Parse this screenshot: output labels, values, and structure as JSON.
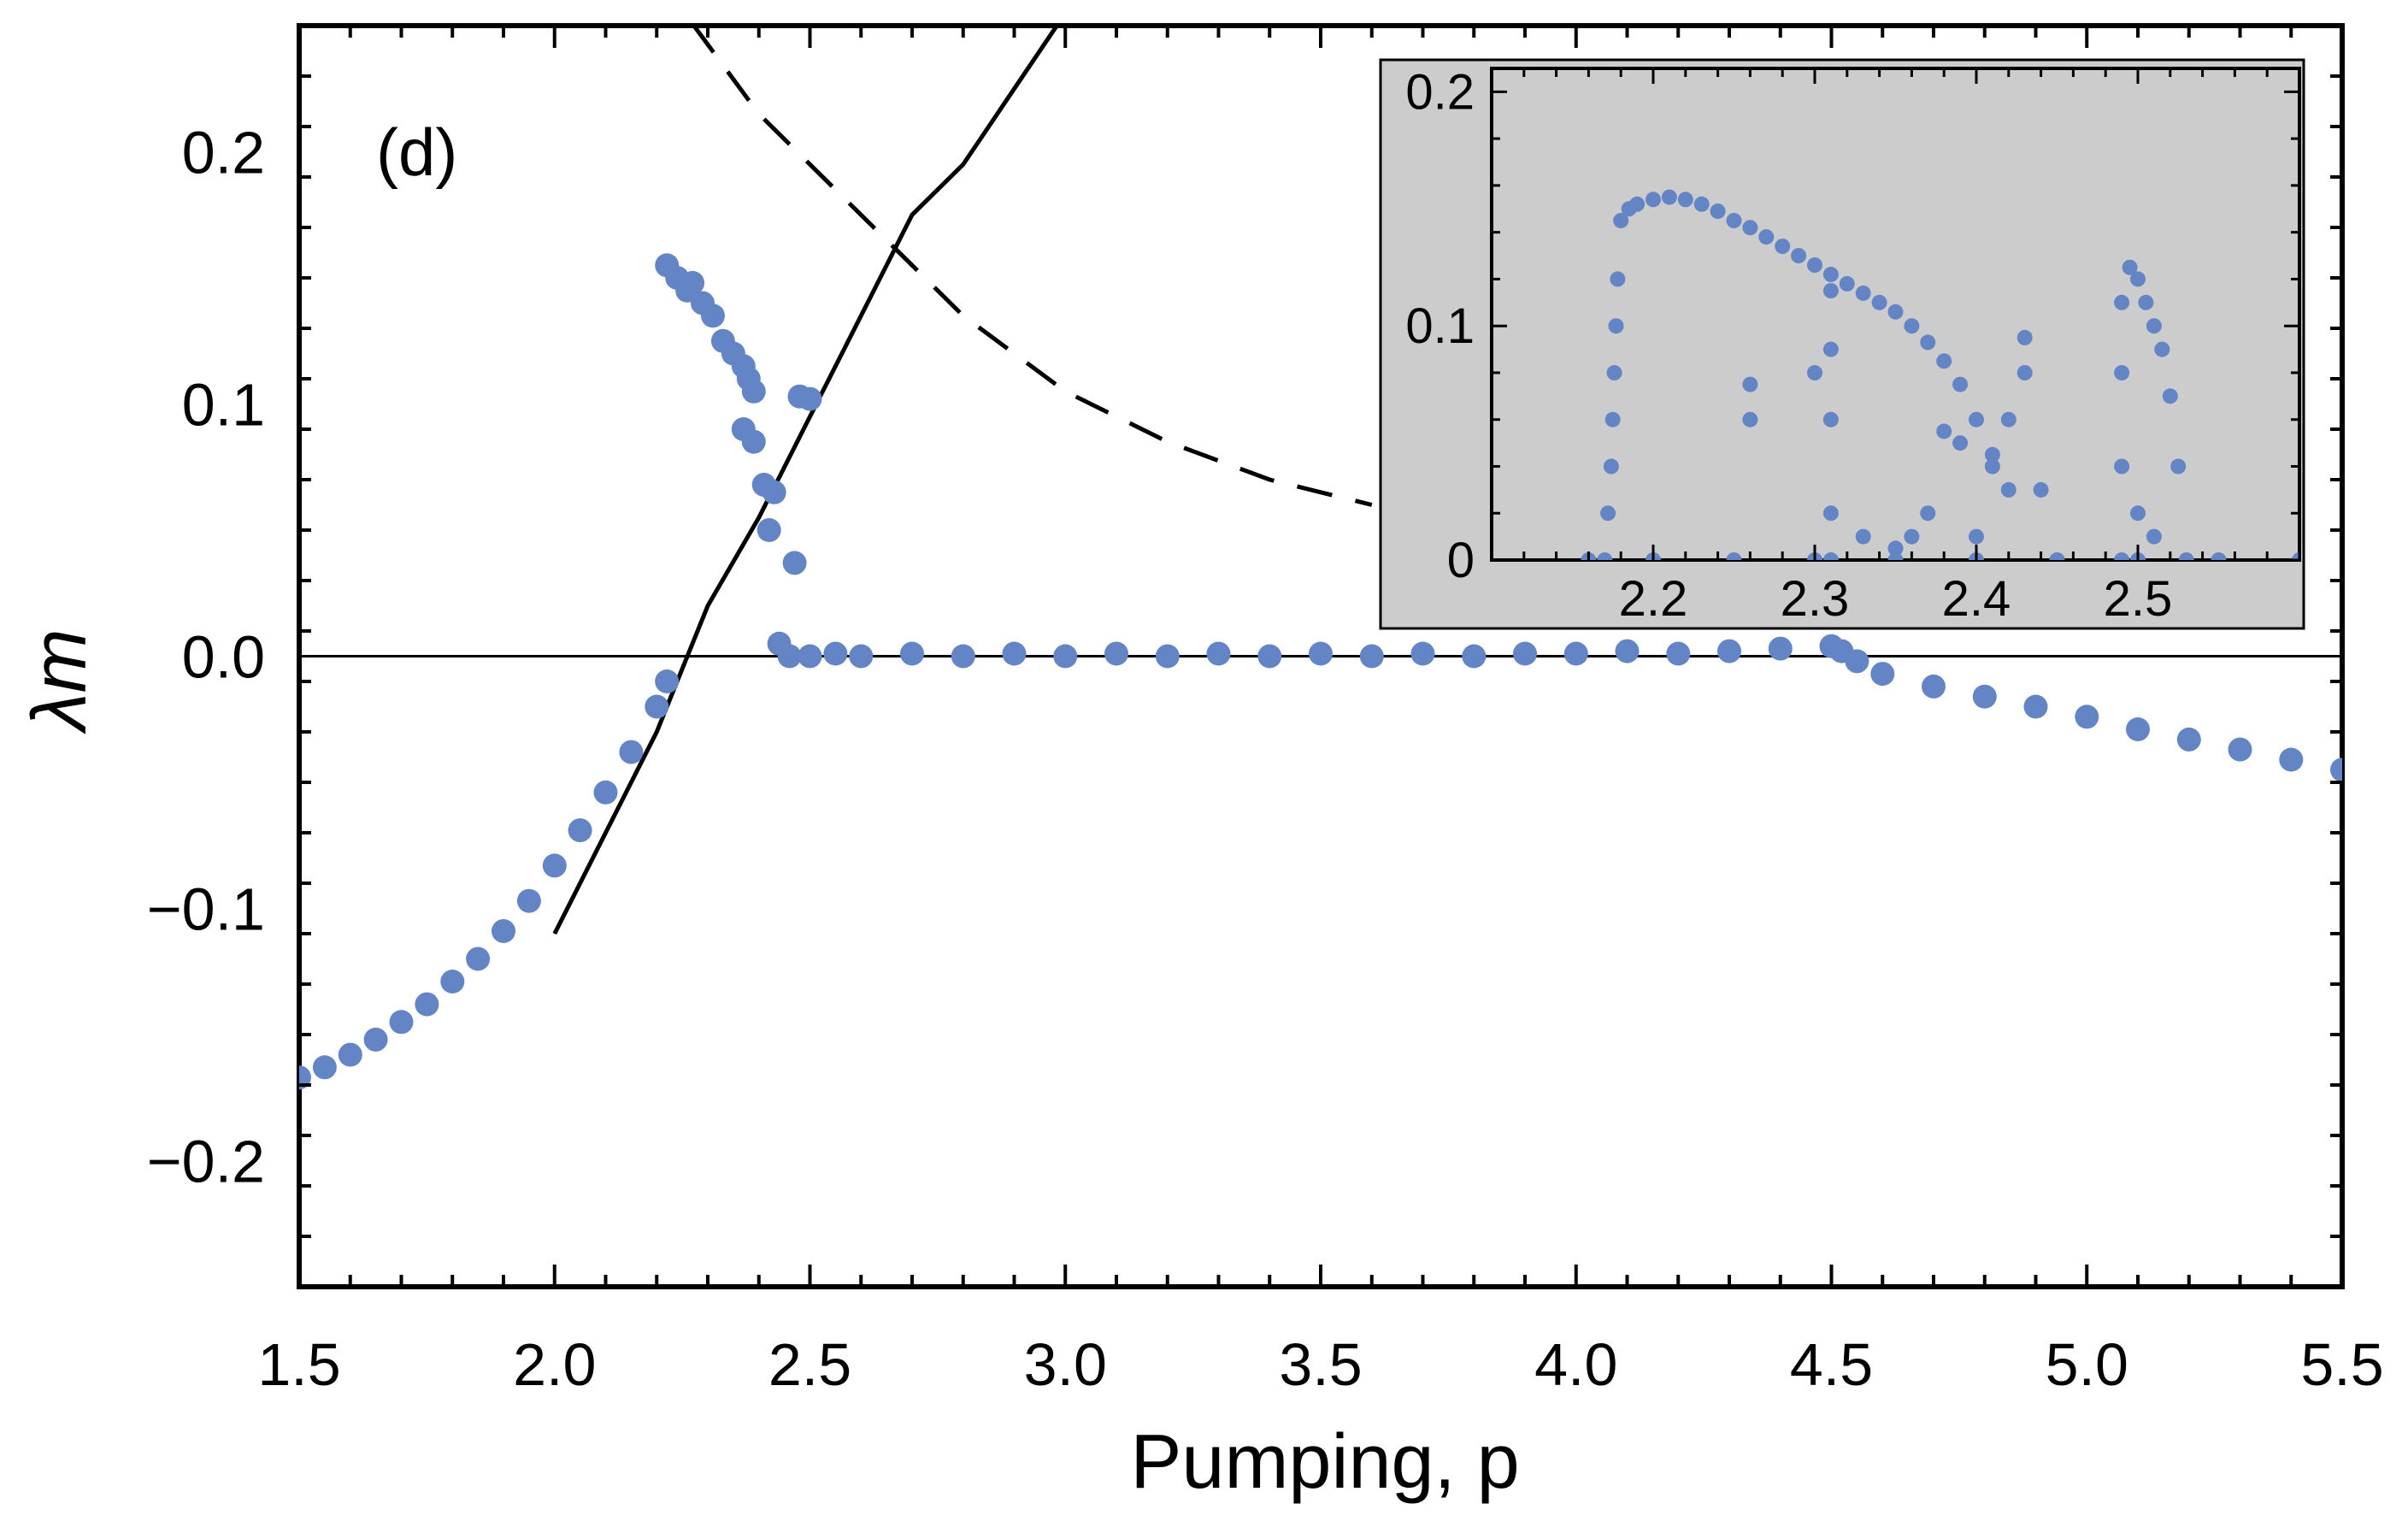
{
  "chart_data": [
    {
      "type": "scatter",
      "panel_label": "(d)",
      "xlabel": "Pumping, p",
      "ylabel": "λm",
      "xlim": [
        1.5,
        5.5
      ],
      "ylim": [
        -0.25,
        0.25
      ],
      "x_ticks": [
        "1.5",
        "2.0",
        "2.5",
        "3.0",
        "3.5",
        "4.0",
        "4.5",
        "5.0",
        "5.5"
      ],
      "x_tick_values": [
        1.5,
        2.0,
        2.5,
        3.0,
        3.5,
        4.0,
        4.5,
        5.0,
        5.5
      ],
      "y_ticks": [
        "−0.2",
        "−0.1",
        "0.0",
        "0.1",
        "0.2"
      ],
      "y_tick_values": [
        -0.2,
        -0.1,
        0.0,
        0.1,
        0.2
      ],
      "grid": false,
      "marker_color": "#6485c5",
      "reference_lines": [
        {
          "style": "solid",
          "points": [
            [
              2.0,
              -0.11
            ],
            [
              2.1,
              -0.07
            ],
            [
              2.2,
              -0.03
            ],
            [
              2.3,
              0.02
            ],
            [
              2.4,
              0.055
            ],
            [
              2.5,
              0.095
            ],
            [
              2.6,
              0.135
            ],
            [
              2.7,
              0.175
            ],
            [
              2.8,
              0.195
            ],
            [
              2.9,
              0.225
            ],
            [
              3.0,
              0.255
            ]
          ]
        },
        {
          "style": "dashed",
          "points": [
            [
              2.2,
              0.27
            ],
            [
              2.4,
              0.215
            ],
            [
              2.6,
              0.175
            ],
            [
              2.8,
              0.135
            ],
            [
              3.0,
              0.105
            ],
            [
              3.2,
              0.085
            ],
            [
              3.4,
              0.07
            ],
            [
              3.6,
              0.06
            ]
          ]
        },
        {
          "style": "solid-thin",
          "points": [
            [
              1.5,
              0.0
            ],
            [
              5.5,
              0.0
            ]
          ]
        }
      ],
      "series": [
        {
          "points": [
            [
              1.5,
              -0.167
            ],
            [
              1.55,
              -0.163
            ],
            [
              1.6,
              -0.158
            ],
            [
              1.65,
              -0.152
            ],
            [
              1.7,
              -0.145
            ],
            [
              1.75,
              -0.138
            ],
            [
              1.8,
              -0.129
            ],
            [
              1.85,
              -0.12
            ],
            [
              1.9,
              -0.109
            ],
            [
              1.95,
              -0.097
            ],
            [
              2.0,
              -0.083
            ],
            [
              2.05,
              -0.069
            ],
            [
              2.1,
              -0.054
            ],
            [
              2.15,
              -0.038
            ],
            [
              2.2,
              -0.02
            ],
            [
              2.22,
              -0.01
            ]
          ]
        },
        {
          "points": [
            [
              2.22,
              0.155
            ],
            [
              2.24,
              0.15
            ],
            [
              2.26,
              0.145
            ],
            [
              2.27,
              0.148
            ],
            [
              2.29,
              0.14
            ],
            [
              2.31,
              0.135
            ],
            [
              2.33,
              0.125
            ],
            [
              2.35,
              0.12
            ],
            [
              2.37,
              0.115
            ],
            [
              2.38,
              0.11
            ],
            [
              2.39,
              0.105
            ],
            [
              2.37,
              0.09
            ],
            [
              2.39,
              0.085
            ],
            [
              2.41,
              0.068
            ],
            [
              2.43,
              0.065
            ],
            [
              2.42,
              0.05
            ],
            [
              2.47,
              0.037
            ],
            [
              2.48,
              0.103
            ],
            [
              2.5,
              0.102
            ]
          ]
        },
        {
          "points": [
            [
              2.44,
              0.005
            ],
            [
              2.46,
              0.0
            ],
            [
              2.5,
              0.0
            ],
            [
              2.55,
              0.001
            ],
            [
              2.6,
              0.0
            ],
            [
              2.7,
              0.001
            ],
            [
              2.8,
              0.0
            ],
            [
              2.9,
              0.001
            ],
            [
              3.0,
              0.0
            ],
            [
              3.1,
              0.001
            ],
            [
              3.2,
              0.0
            ],
            [
              3.3,
              0.001
            ],
            [
              3.4,
              0.0
            ],
            [
              3.5,
              0.001
            ],
            [
              3.6,
              0.0
            ],
            [
              3.7,
              0.001
            ],
            [
              3.8,
              0.0
            ],
            [
              3.9,
              0.001
            ],
            [
              4.0,
              0.001
            ],
            [
              4.1,
              0.002
            ],
            [
              4.2,
              0.001
            ],
            [
              4.3,
              0.002
            ],
            [
              4.4,
              0.003
            ],
            [
              4.5,
              0.004
            ]
          ]
        },
        {
          "points": [
            [
              4.52,
              0.002
            ],
            [
              4.55,
              -0.002
            ],
            [
              4.6,
              -0.007
            ],
            [
              4.7,
              -0.012
            ],
            [
              4.8,
              -0.016
            ],
            [
              4.9,
              -0.02
            ],
            [
              5.0,
              -0.024
            ],
            [
              5.1,
              -0.029
            ],
            [
              5.2,
              -0.033
            ],
            [
              5.3,
              -0.037
            ],
            [
              5.4,
              -0.041
            ],
            [
              5.5,
              -0.045
            ]
          ]
        }
      ]
    },
    {
      "type": "scatter",
      "xlim": [
        2.1,
        2.6
      ],
      "ylim": [
        0.0,
        0.21
      ],
      "x_ticks": [
        "2.2",
        "2.3",
        "2.4",
        "2.5"
      ],
      "x_tick_values": [
        2.2,
        2.3,
        2.4,
        2.5
      ],
      "y_ticks": [
        "0",
        "0.1",
        "0.2"
      ],
      "y_tick_values": [
        0.0,
        0.1,
        0.2
      ],
      "background": "#cccccc",
      "marker_color": "#6485c5",
      "series": [
        {
          "points": [
            [
              2.16,
              0.0
            ],
            [
              2.17,
              0.0
            ],
            [
              2.172,
              0.02
            ],
            [
              2.174,
              0.04
            ],
            [
              2.175,
              0.06
            ],
            [
              2.176,
              0.08
            ],
            [
              2.177,
              0.1
            ],
            [
              2.178,
              0.12
            ],
            [
              2.18,
              0.145
            ],
            [
              2.185,
              0.15
            ],
            [
              2.19,
              0.152
            ],
            [
              2.2,
              0.154
            ],
            [
              2.21,
              0.155
            ],
            [
              2.22,
              0.154
            ],
            [
              2.23,
              0.152
            ],
            [
              2.24,
              0.149
            ],
            [
              2.25,
              0.145
            ],
            [
              2.26,
              0.142
            ],
            [
              2.27,
              0.138
            ],
            [
              2.28,
              0.134
            ],
            [
              2.29,
              0.13
            ],
            [
              2.3,
              0.126
            ],
            [
              2.31,
              0.122
            ],
            [
              2.32,
              0.118
            ],
            [
              2.33,
              0.114
            ],
            [
              2.34,
              0.11
            ],
            [
              2.35,
              0.106
            ],
            [
              2.36,
              0.1
            ],
            [
              2.37,
              0.093
            ],
            [
              2.38,
              0.085
            ],
            [
              2.39,
              0.075
            ],
            [
              2.4,
              0.06
            ],
            [
              2.41,
              0.045
            ],
            [
              2.42,
              0.03
            ]
          ]
        },
        {
          "points": [
            [
              2.31,
              0.0
            ],
            [
              2.31,
              0.02
            ],
            [
              2.31,
              0.06
            ],
            [
              2.31,
              0.09
            ],
            [
              2.31,
              0.115
            ],
            [
              2.3,
              0.08
            ],
            [
              2.26,
              0.075
            ],
            [
              2.26,
              0.06
            ],
            [
              2.38,
              0.055
            ],
            [
              2.39,
              0.05
            ],
            [
              2.41,
              0.04
            ],
            [
              2.42,
              0.06
            ],
            [
              2.43,
              0.08
            ],
            [
              2.43,
              0.095
            ],
            [
              2.44,
              0.03
            ],
            [
              2.45,
              0.0
            ],
            [
              2.4,
              0.01
            ],
            [
              2.35,
              0.005
            ],
            [
              2.33,
              0.01
            ],
            [
              2.37,
              0.02
            ],
            [
              2.36,
              0.01
            ]
          ]
        },
        {
          "points": [
            [
              2.49,
              0.0
            ],
            [
              2.49,
              0.04
            ],
            [
              2.49,
              0.08
            ],
            [
              2.49,
              0.11
            ],
            [
              2.495,
              0.125
            ],
            [
              2.5,
              0.12
            ],
            [
              2.505,
              0.11
            ],
            [
              2.51,
              0.1
            ],
            [
              2.515,
              0.09
            ],
            [
              2.52,
              0.07
            ],
            [
              2.525,
              0.04
            ],
            [
              2.53,
              0.0
            ],
            [
              2.5,
              0.02
            ],
            [
              2.51,
              0.01
            ]
          ]
        },
        {
          "points": [
            [
              2.45,
              0.0
            ],
            [
              2.5,
              0.0
            ],
            [
              2.55,
              0.0
            ],
            [
              2.6,
              0.0
            ],
            [
              2.2,
              0.0
            ],
            [
              2.25,
              0.0
            ],
            [
              2.3,
              0.0
            ],
            [
              2.35,
              0.0
            ],
            [
              2.4,
              0.0
            ]
          ]
        }
      ]
    }
  ]
}
